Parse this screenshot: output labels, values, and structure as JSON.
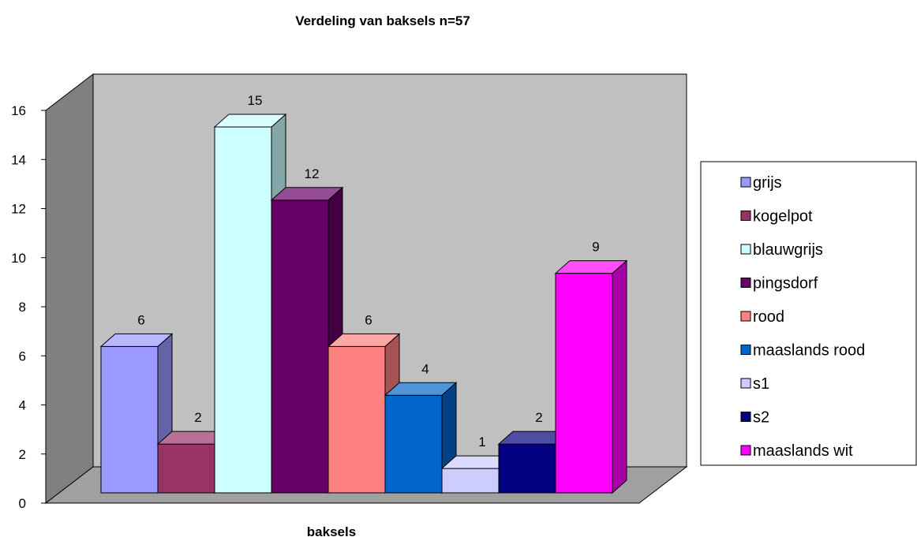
{
  "chart_data": {
    "type": "bar",
    "title": "Verdeling van baksels n=57",
    "xlabel": "baksels",
    "ylabel": "",
    "ylim": [
      0,
      16
    ],
    "yticks": [
      0,
      2,
      4,
      6,
      8,
      10,
      12,
      14,
      16
    ],
    "view": "3d",
    "legend_position": "right",
    "series": [
      {
        "name": "grijs",
        "value": 6,
        "color": "#9999ff"
      },
      {
        "name": "kogelpot",
        "value": 2,
        "color": "#993366"
      },
      {
        "name": "blauwgrijs",
        "value": 15,
        "color": "#ccffff"
      },
      {
        "name": "pingsdorf",
        "value": 12,
        "color": "#660066"
      },
      {
        "name": "rood",
        "value": 6,
        "color": "#ff8080"
      },
      {
        "name": "maaslands rood",
        "value": 4,
        "color": "#0066cc"
      },
      {
        "name": "s1",
        "value": 1,
        "color": "#ccccff"
      },
      {
        "name": "s2",
        "value": 2,
        "color": "#000080"
      },
      {
        "name": "maaslands wit",
        "value": 9,
        "color": "#ff00ff"
      }
    ]
  }
}
